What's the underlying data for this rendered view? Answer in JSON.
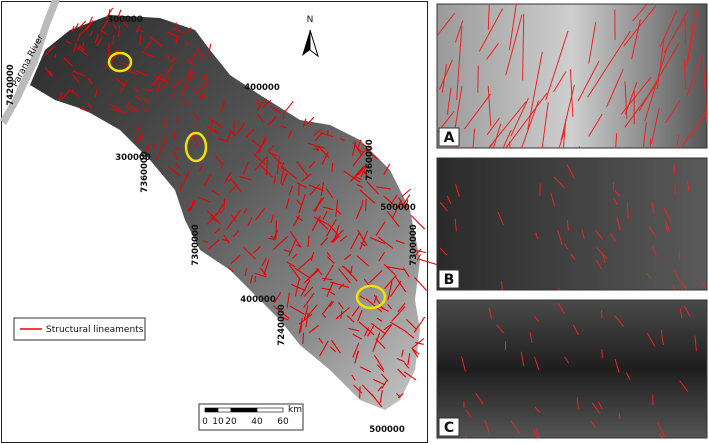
{
  "map": {
    "north": "N",
    "river": "Parana River",
    "coordinate_labels": [
      "300000",
      "7420000",
      "400000",
      "300000",
      "7360000",
      "7360000",
      "500000",
      "7300000",
      "7300000",
      "400000",
      "7240000",
      "500000"
    ],
    "legend": "Structural lineaments",
    "scale": {
      "ticks": [
        0,
        10,
        20,
        40,
        60
      ],
      "unit": "km"
    }
  },
  "panels": [
    "A",
    "B",
    "C"
  ]
}
